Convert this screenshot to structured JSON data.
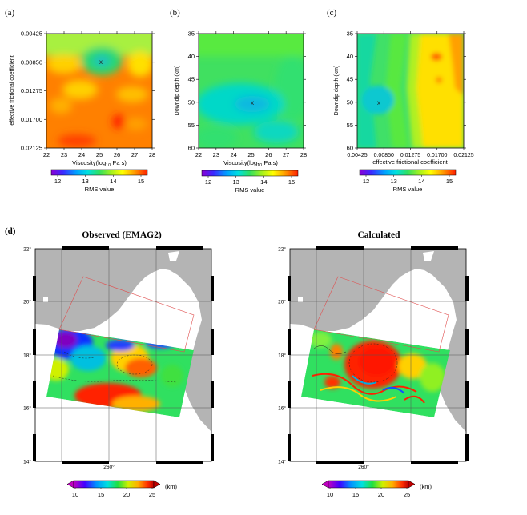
{
  "panels_top": [
    {
      "label": "(a)",
      "xlabel": "Viscosity(log",
      "xlabel_sub": "10",
      "xlabel_tail": " Pa s)",
      "ylabel": "effective frictional coefficient",
      "xticks": [
        "22",
        "23",
        "24",
        "25",
        "26",
        "27",
        "28"
      ],
      "yticks": [
        "0.00425",
        "0.00850",
        "0.01275",
        "0.01700",
        "0.02125"
      ],
      "marker": "x"
    },
    {
      "label": "(b)",
      "xlabel": "Viscosity(log",
      "xlabel_sub": "10",
      "xlabel_tail": " Pa s)",
      "ylabel": "Downdip depth (km)",
      "xticks": [
        "22",
        "23",
        "24",
        "25",
        "26",
        "27",
        "28"
      ],
      "yticks": [
        "35",
        "40",
        "45",
        "50",
        "55",
        "60"
      ],
      "marker": "x"
    },
    {
      "label": "(c)",
      "xlabel": "effective frictional coefficient",
      "xlabel_sub": "",
      "xlabel_tail": "",
      "ylabel": "Downdip depth (km)",
      "xticks": [
        "0.00425",
        "0.00850",
        "0.01275",
        "0.01700",
        "0.02125"
      ],
      "yticks": [
        "35",
        "40",
        "45",
        "50",
        "55",
        "60"
      ],
      "marker": "x"
    }
  ],
  "rms_colorbar": {
    "ticks": [
      "12",
      "13",
      "14",
      "15"
    ],
    "label": "RMS value"
  },
  "panel_d": {
    "label": "(d)",
    "maps": [
      {
        "title": "Observed (EMAG2)",
        "lat_ticks": [
          "22°",
          "20°",
          "18°",
          "16°",
          "14°"
        ],
        "lon_tick": "260°"
      },
      {
        "title": "Calculated",
        "lat_ticks": [
          "22°",
          "20°",
          "18°",
          "16°",
          "14°"
        ],
        "lon_tick": "260°"
      }
    ],
    "colorbar": {
      "ticks": [
        "10",
        "15",
        "20",
        "25"
      ],
      "unit": "(km)"
    }
  },
  "colors": {
    "land": "#b4b4b4",
    "frame": "#000000",
    "box": "#e05050",
    "grid": "#777777"
  }
}
